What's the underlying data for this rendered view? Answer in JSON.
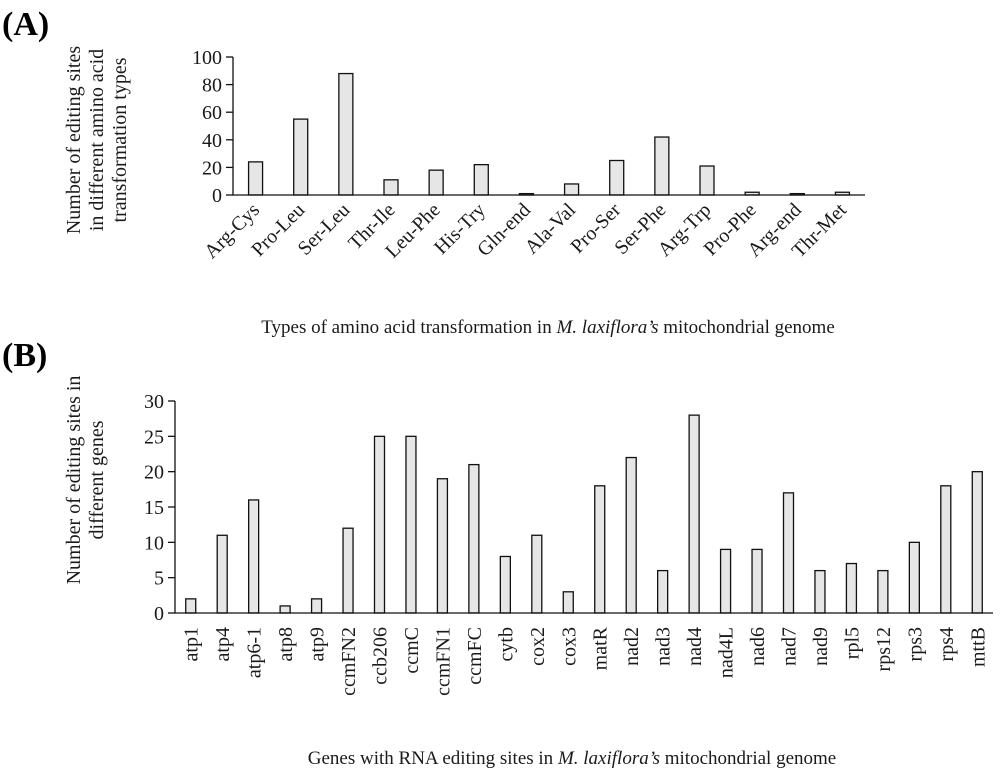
{
  "chart_data": [
    {
      "panel": "(A)",
      "type": "bar",
      "categories": [
        "Arg-Cys",
        "Pro-Leu",
        "Ser-Leu",
        "Thr-Ile",
        "Leu-Phe",
        "His-Try",
        "Gln-end",
        "Ala-Val",
        "Pro-Ser",
        "Ser-Phe",
        "Arg-Trp",
        "Pro-Phe",
        "Arg-end",
        "Thr-Met"
      ],
      "values": [
        24,
        55,
        88,
        11,
        18,
        22,
        1,
        8,
        25,
        42,
        21,
        2,
        1,
        2
      ],
      "ylabel_lines": [
        "Number of editing sites",
        "in different amino acid",
        "transformation types"
      ],
      "ylim": [
        0,
        100
      ],
      "yticks": [
        0,
        20,
        40,
        60,
        80,
        100
      ],
      "xlabel_prefix": "Types of amino acid transformation in ",
      "xlabel_italic": "M. laxiflora’s",
      "xlabel_suffix": " mitochondrial genome"
    },
    {
      "panel": "(B)",
      "type": "bar",
      "categories": [
        "atp1",
        "atp4",
        "atp6-1",
        "atp8",
        "atp9",
        "ccmFN2",
        "ccb206",
        "ccmC",
        "ccmFN1",
        "ccmFC",
        "cytb",
        "cox2",
        "cox3",
        "matR",
        "nad2",
        "nad3",
        "nad4",
        "nad4L",
        "nad6",
        "nad7",
        "nad9",
        "rpl5",
        "rps12",
        "rps3",
        "rps4",
        "mttB"
      ],
      "values": [
        2,
        11,
        16,
        1,
        2,
        12,
        25,
        25,
        19,
        21,
        8,
        11,
        3,
        18,
        22,
        6,
        28,
        9,
        9,
        17,
        6,
        7,
        6,
        10,
        18,
        20
      ],
      "ylabel_lines": [
        "Number of editing sites in",
        "different genes"
      ],
      "ylim": [
        0,
        30
      ],
      "yticks": [
        0,
        5,
        10,
        15,
        20,
        25,
        30
      ],
      "xlabel_prefix": "Genes with RNA editing sites in ",
      "xlabel_italic": "M. laxiflora’s",
      "xlabel_suffix": " mitochondrial genome"
    }
  ]
}
